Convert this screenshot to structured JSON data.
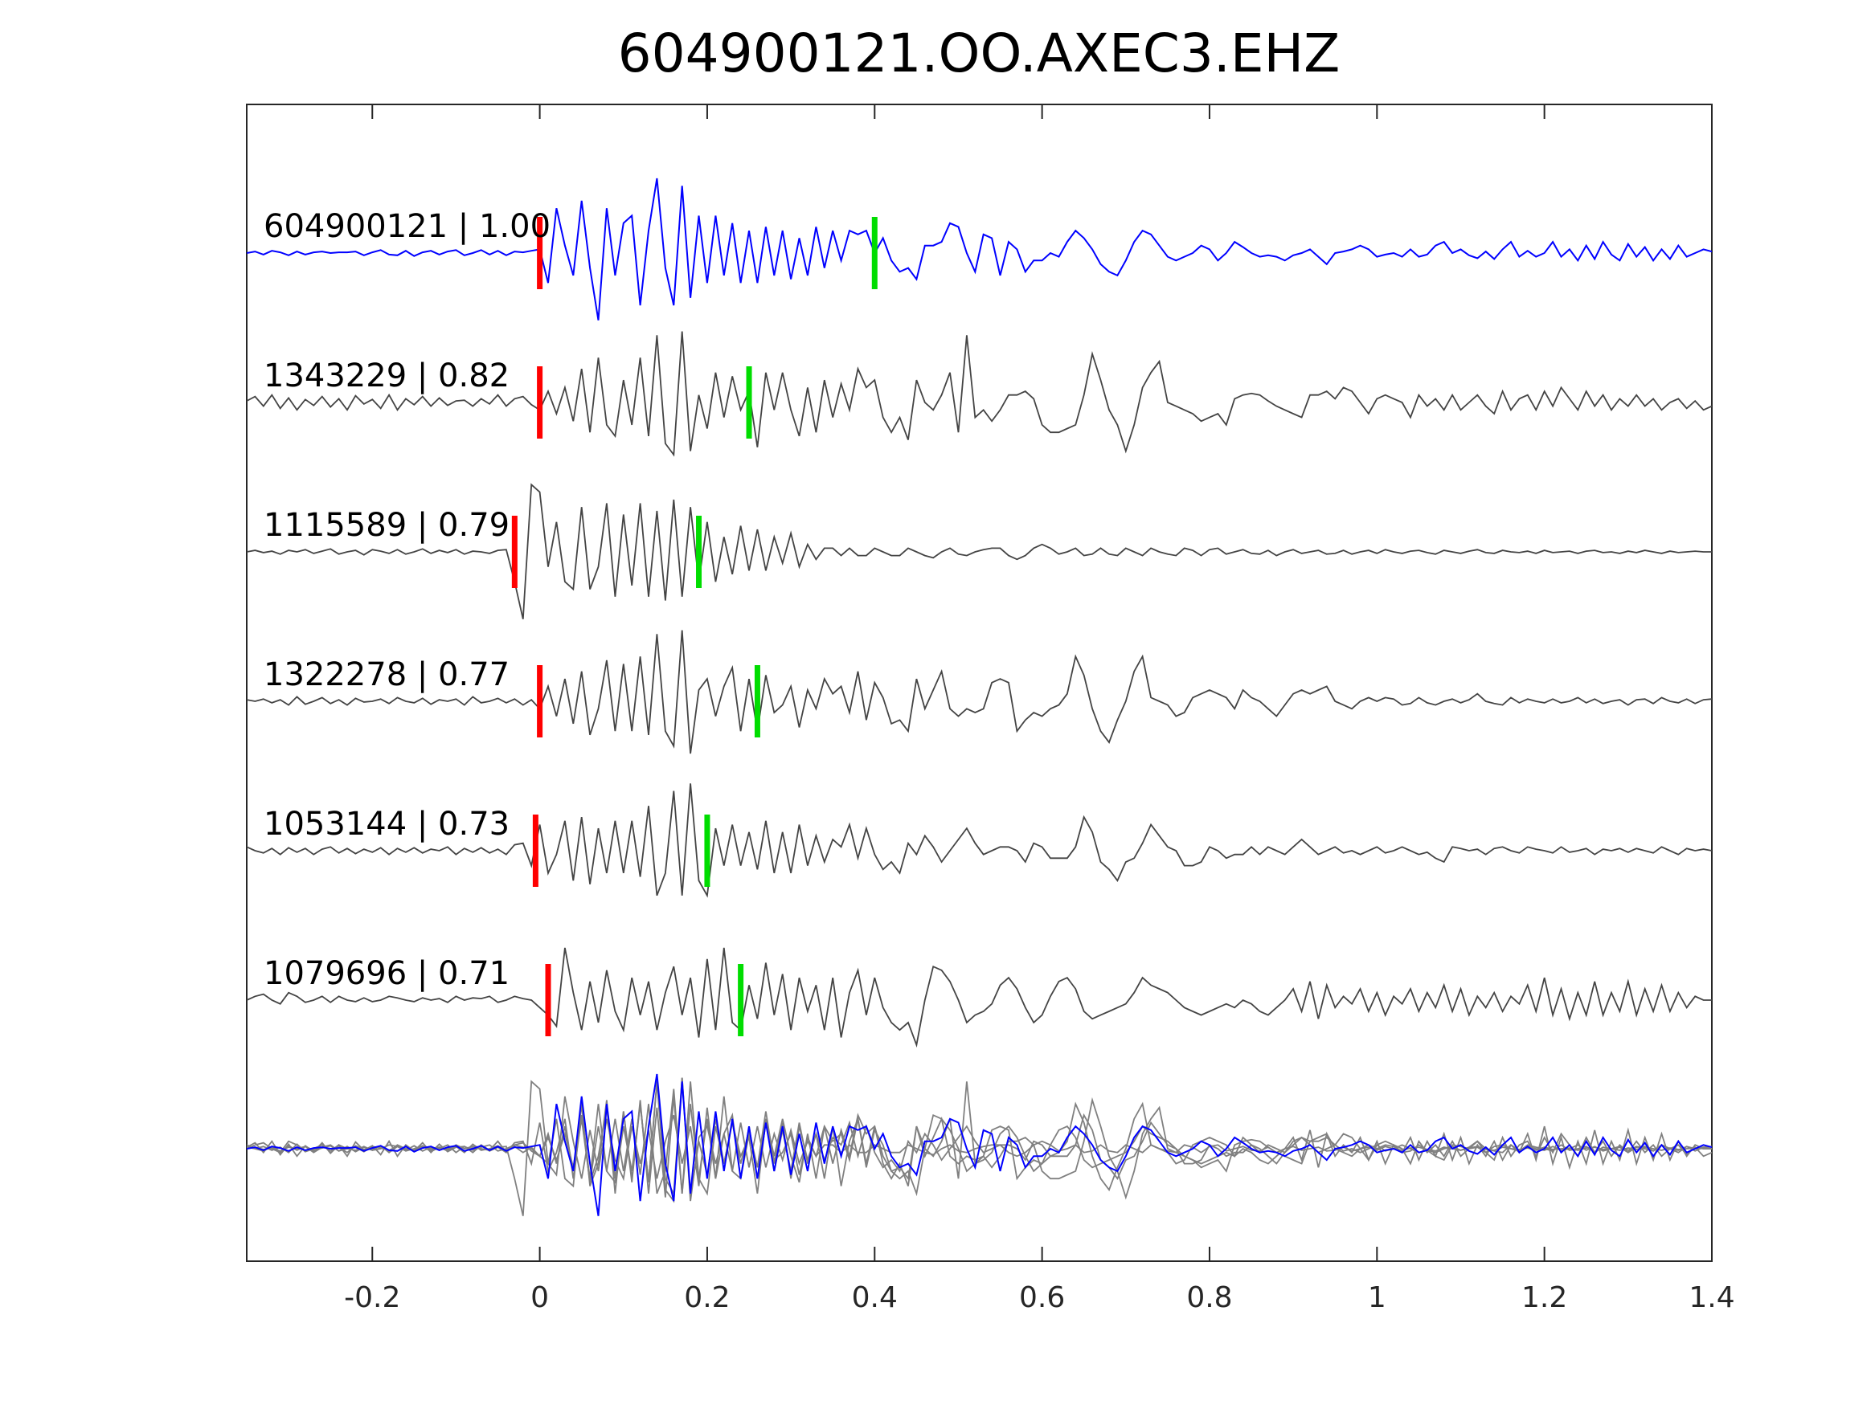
{
  "chart_data": {
    "type": "line",
    "title": "604900121.OO.AXEC3.EHZ",
    "xlabel": "",
    "ylabel": "",
    "xlim": [
      -0.35,
      1.4
    ],
    "xticks": [
      -0.2,
      0,
      0.2,
      0.4,
      0.6,
      0.8,
      1,
      1.2,
      1.4
    ],
    "xtick_labels": [
      "-0.2",
      "0",
      "0.2",
      "0.4",
      "0.6",
      "0.8",
      "1",
      "1.2",
      "1.4"
    ],
    "grid": false,
    "t0": -0.35,
    "dt": 0.01,
    "pick_colors": {
      "p": "#ff0000",
      "s": "#00dd00"
    },
    "stack_colors": {
      "others": "#808080",
      "reference": "#0000ff"
    },
    "traces": [
      {
        "label": "604900121 | 1.00",
        "color": "#0000ff",
        "p_pick": 0.0,
        "s_pick": 0.4,
        "values": [
          0,
          2,
          -2,
          3,
          1,
          -3,
          2,
          -2,
          1,
          2,
          0,
          1,
          1,
          2,
          -3,
          1,
          4,
          -2,
          -3,
          3,
          -4,
          1,
          3,
          -2,
          2,
          4,
          -3,
          0,
          4,
          -2,
          3,
          -3,
          2,
          1,
          3,
          5,
          -40,
          60,
          10,
          -30,
          70,
          -20,
          -90,
          60,
          -30,
          40,
          50,
          -70,
          30,
          100,
          -20,
          -70,
          90,
          -60,
          50,
          -40,
          50,
          -30,
          40,
          -40,
          30,
          -40,
          35,
          -30,
          30,
          -35,
          20,
          -30,
          35,
          -20,
          30,
          -10,
          30,
          25,
          30,
          0,
          20,
          -10,
          -25,
          -20,
          -35,
          10,
          10,
          15,
          40,
          35,
          0,
          -25,
          25,
          20,
          -30,
          15,
          5,
          -25,
          -10,
          -10,
          0,
          -5,
          15,
          30,
          20,
          5,
          -15,
          -25,
          -30,
          -10,
          15,
          30,
          25,
          10,
          -5,
          -10,
          -5,
          0,
          10,
          5,
          -10,
          0,
          15,
          8,
          0,
          -5,
          -3,
          -5,
          -10,
          -3,
          0,
          5,
          -5,
          -15,
          0,
          2,
          5,
          10,
          5,
          -5,
          -2,
          0,
          -5,
          5,
          -5,
          -2,
          10,
          15,
          0,
          5,
          -3,
          -7,
          2,
          -8,
          5,
          15,
          -5,
          3,
          -5,
          0,
          15,
          -5,
          5,
          -10,
          10,
          -8,
          15,
          -2,
          -10,
          12,
          -5,
          8,
          -10,
          5,
          -8,
          10,
          -5,
          0,
          5,
          2
        ]
      },
      {
        "label": "1343229 | 0.82",
        "color": "#444444",
        "p_pick": 0.0,
        "s_pick": 0.25,
        "values": [
          2,
          8,
          -5,
          10,
          -8,
          6,
          -10,
          4,
          -4,
          8,
          -6,
          5,
          -10,
          9,
          -2,
          4,
          -8,
          10,
          -10,
          5,
          -3,
          8,
          -5,
          6,
          -4,
          2,
          3,
          -5,
          5,
          -2,
          10,
          -5,
          5,
          8,
          -3,
          -10,
          15,
          -15,
          20,
          -25,
          45,
          -40,
          60,
          -30,
          -45,
          30,
          -30,
          60,
          -45,
          90,
          -55,
          -70,
          95,
          -65,
          10,
          -35,
          40,
          -20,
          35,
          -10,
          15,
          -60,
          40,
          -10,
          40,
          -10,
          -45,
          20,
          -40,
          30,
          -20,
          25,
          -10,
          45,
          20,
          30,
          -20,
          -40,
          -20,
          -50,
          30,
          0,
          -10,
          10,
          40,
          -40,
          90,
          -20,
          -10,
          -25,
          -10,
          10,
          10,
          15,
          5,
          -30,
          -40,
          -40,
          -35,
          -30,
          10,
          65,
          30,
          -10,
          -30,
          -65,
          -30,
          20,
          40,
          55,
          0,
          -5,
          -10,
          -15,
          -25,
          -20,
          -15,
          -30,
          5,
          10,
          12,
          10,
          2,
          -5,
          -10,
          -15,
          -20,
          10,
          10,
          15,
          5,
          20,
          15,
          0,
          -15,
          5,
          10,
          5,
          0,
          -20,
          10,
          -5,
          5,
          -10,
          10,
          -10,
          0,
          10,
          -5,
          -15,
          15,
          -10,
          5,
          10,
          -10,
          15,
          -5,
          20,
          5,
          -10,
          15,
          -5,
          10,
          -10,
          5,
          -5,
          10,
          -5,
          5,
          -10,
          0,
          5,
          -8,
          2,
          -10,
          -5
        ]
      },
      {
        "label": "1115589 | 0.79",
        "color": "#444444",
        "p_pick": -0.03,
        "s_pick": 0.19,
        "values": [
          0,
          2,
          -1,
          1,
          -3,
          2,
          0,
          3,
          -2,
          1,
          4,
          -3,
          0,
          2,
          -4,
          3,
          1,
          -2,
          3,
          -3,
          0,
          4,
          -2,
          2,
          -1,
          3,
          -3,
          1,
          0,
          -2,
          2,
          3,
          -40,
          -90,
          90,
          80,
          -20,
          40,
          -40,
          -50,
          60,
          -50,
          -20,
          65,
          -60,
          50,
          -45,
          65,
          -60,
          55,
          -65,
          70,
          -60,
          60,
          -40,
          40,
          -40,
          20,
          -30,
          35,
          -25,
          30,
          -25,
          20,
          -15,
          25,
          -20,
          10,
          -10,
          5,
          5,
          -5,
          5,
          -5,
          -5,
          5,
          0,
          -5,
          -5,
          5,
          0,
          -5,
          -8,
          0,
          5,
          -3,
          -5,
          0,
          3,
          5,
          5,
          -5,
          -10,
          -5,
          5,
          10,
          5,
          -3,
          0,
          5,
          -5,
          -3,
          5,
          -3,
          -5,
          5,
          0,
          -5,
          5,
          0,
          -3,
          -5,
          5,
          2,
          -5,
          3,
          5,
          -3,
          0,
          3,
          -2,
          -3,
          2,
          -5,
          0,
          3,
          -2,
          0,
          2,
          -3,
          -2,
          2,
          -3,
          0,
          2,
          -2,
          3,
          0,
          -2,
          1,
          2,
          -1,
          -3,
          2,
          0,
          -2,
          1,
          3,
          -1,
          -2,
          2,
          0,
          -1,
          1,
          -2,
          2,
          -1,
          0,
          1,
          -2,
          1,
          2,
          -1,
          0,
          -2,
          1,
          -1,
          2,
          0,
          -2,
          1,
          -1,
          0,
          1,
          0,
          0
        ]
      },
      {
        "label": "1322278 | 0.77",
        "color": "#444444",
        "p_pick": 0.0,
        "s_pick": 0.26,
        "values": [
          2,
          0,
          3,
          -2,
          2,
          -5,
          6,
          -4,
          0,
          5,
          -3,
          2,
          -5,
          4,
          -1,
          0,
          3,
          -3,
          5,
          0,
          -2,
          4,
          -4,
          2,
          0,
          3,
          -5,
          6,
          -2,
          0,
          4,
          -2,
          3,
          -5,
          2,
          -10,
          20,
          -20,
          30,
          -30,
          40,
          -45,
          -10,
          55,
          -40,
          50,
          -40,
          60,
          -45,
          90,
          -40,
          -60,
          95,
          -70,
          15,
          30,
          -20,
          20,
          45,
          -40,
          30,
          -40,
          35,
          -15,
          -5,
          20,
          -35,
          15,
          -10,
          30,
          10,
          20,
          -15,
          40,
          -25,
          25,
          5,
          -30,
          -25,
          -40,
          30,
          -10,
          15,
          40,
          -10,
          -20,
          -10,
          -15,
          -10,
          25,
          30,
          25,
          -40,
          -25,
          -15,
          -20,
          -10,
          -5,
          10,
          60,
          35,
          -10,
          -40,
          -55,
          -25,
          0,
          40,
          60,
          5,
          0,
          -5,
          -20,
          -15,
          5,
          10,
          15,
          10,
          5,
          -10,
          15,
          5,
          0,
          -10,
          -20,
          -5,
          10,
          15,
          10,
          15,
          20,
          0,
          -5,
          -10,
          0,
          5,
          0,
          5,
          3,
          -5,
          -3,
          5,
          -2,
          -5,
          0,
          3,
          -2,
          2,
          10,
          0,
          -3,
          -5,
          5,
          -2,
          3,
          0,
          -2,
          3,
          -2,
          0,
          5,
          -2,
          3,
          -3,
          0,
          2,
          -5,
          2,
          3,
          -3,
          5,
          0,
          -2,
          3,
          -3,
          2,
          3
        ]
      },
      {
        "label": "1053144 | 0.73",
        "color": "#444444",
        "p_pick": -0.005,
        "s_pick": 0.2,
        "values": [
          5,
          0,
          -3,
          3,
          -5,
          4,
          -2,
          3,
          -5,
          2,
          5,
          -3,
          3,
          -4,
          2,
          -2,
          4,
          -5,
          3,
          -2,
          4,
          -3,
          2,
          0,
          5,
          -5,
          3,
          -2,
          4,
          -3,
          2,
          -5,
          8,
          10,
          -20,
          35,
          -30,
          -5,
          40,
          -40,
          45,
          -45,
          30,
          -30,
          40,
          -30,
          40,
          -35,
          60,
          -60,
          -30,
          80,
          -60,
          90,
          -40,
          -60,
          30,
          -20,
          35,
          -20,
          25,
          -25,
          40,
          -30,
          25,
          -30,
          35,
          -20,
          20,
          -15,
          15,
          5,
          35,
          -10,
          30,
          -5,
          -25,
          -15,
          -30,
          10,
          -5,
          20,
          5,
          -15,
          0,
          15,
          30,
          10,
          -5,
          0,
          5,
          5,
          0,
          -15,
          10,
          5,
          -10,
          -10,
          -10,
          5,
          45,
          25,
          -15,
          -25,
          -40,
          -15,
          -10,
          10,
          35,
          20,
          5,
          0,
          -20,
          -20,
          -15,
          5,
          0,
          -10,
          -5,
          -5,
          5,
          -5,
          5,
          0,
          -5,
          5,
          15,
          5,
          -5,
          0,
          5,
          -3,
          0,
          -5,
          0,
          5,
          -3,
          0,
          5,
          0,
          -5,
          -2,
          -10,
          -15,
          5,
          3,
          0,
          2,
          -5,
          3,
          5,
          0,
          -3,
          5,
          2,
          0,
          -3,
          5,
          -2,
          0,
          3,
          -5,
          2,
          0,
          3,
          -2,
          3,
          0,
          -3,
          5,
          0,
          -5,
          3,
          0,
          2,
          0
        ]
      },
      {
        "label": "1079696 | 0.71",
        "color": "#444444",
        "p_pick": 0.01,
        "s_pick": 0.24,
        "values": [
          0,
          5,
          8,
          0,
          -5,
          10,
          5,
          -3,
          0,
          5,
          -3,
          5,
          0,
          -2,
          3,
          -2,
          0,
          5,
          3,
          0,
          -2,
          3,
          0,
          2,
          -3,
          5,
          0,
          3,
          2,
          5,
          -3,
          0,
          5,
          2,
          0,
          -10,
          -20,
          -35,
          70,
          10,
          -40,
          25,
          -30,
          40,
          -15,
          -40,
          30,
          -20,
          25,
          -40,
          10,
          45,
          -20,
          30,
          -50,
          55,
          -40,
          70,
          -30,
          -40,
          20,
          -25,
          50,
          -20,
          35,
          -40,
          30,
          -15,
          20,
          -40,
          30,
          -50,
          10,
          40,
          -20,
          30,
          -10,
          -30,
          -40,
          -30,
          -60,
          0,
          45,
          40,
          25,
          0,
          -30,
          -20,
          -15,
          -5,
          20,
          30,
          15,
          -10,
          -30,
          -20,
          5,
          25,
          30,
          15,
          -15,
          -25,
          -20,
          -15,
          -10,
          -5,
          10,
          30,
          20,
          15,
          10,
          0,
          -10,
          -15,
          -20,
          -15,
          -10,
          -5,
          -10,
          0,
          -5,
          -15,
          -20,
          -10,
          0,
          15,
          -15,
          25,
          -25,
          20,
          -10,
          5,
          -5,
          15,
          -15,
          10,
          -20,
          5,
          -5,
          15,
          -15,
          10,
          -10,
          20,
          -15,
          15,
          -20,
          5,
          -10,
          10,
          -15,
          5,
          -5,
          20,
          -15,
          30,
          -20,
          15,
          -25,
          10,
          -20,
          25,
          -20,
          10,
          -15,
          25,
          -20,
          15,
          -15,
          20,
          -15,
          10,
          -10,
          5,
          0,
          0
        ]
      }
    ]
  }
}
